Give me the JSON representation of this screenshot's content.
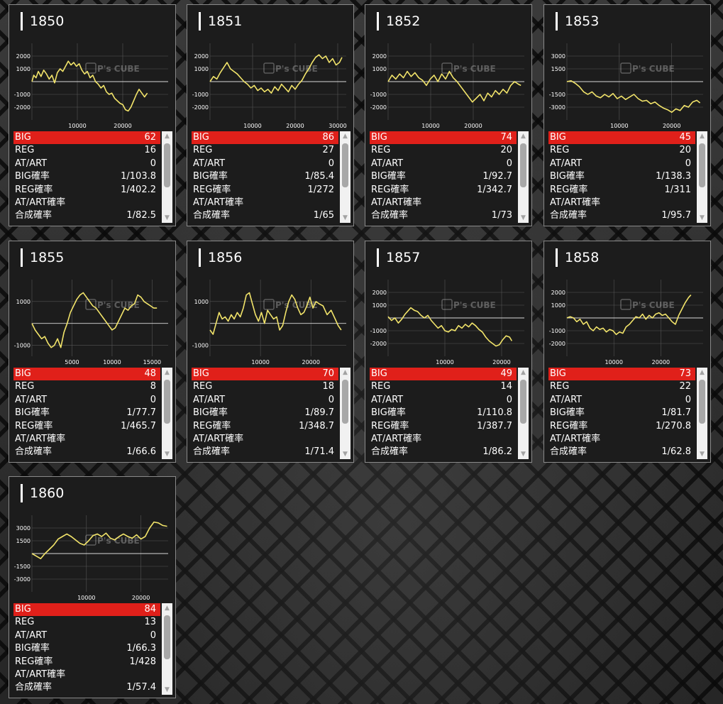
{
  "labels": {
    "big": "BIG",
    "reg": "REG",
    "atart": "AT/ART",
    "big_rate": "BIG確率",
    "reg_rate": "REG確率",
    "atart_rate": "AT/ART確率",
    "total_rate": "合成確率"
  },
  "watermark": "P's CUBE",
  "colors": {
    "line": "#f2e46a",
    "big_row": "#e0201a",
    "grid": "#555555",
    "axis": "#d9d9d9"
  },
  "machines": [
    {
      "id": "1850",
      "big": "62",
      "reg": "16",
      "atart": "0",
      "big_rate": "1/103.8",
      "reg_rate": "1/402.2",
      "atart_rate": "",
      "total_rate": "1/82.5",
      "chart_data": {
        "type": "line",
        "xlim": [
          0,
          30000
        ],
        "ylim": [
          -3000,
          3000
        ],
        "yticks": [
          2000,
          1000,
          -1000,
          -2000
        ],
        "xticks": [
          10000,
          20000
        ],
        "x": [
          0,
          400,
          900,
          1400,
          2000,
          2600,
          3200,
          3800,
          4400,
          5000,
          5600,
          6200,
          6800,
          7400,
          8000,
          8600,
          9200,
          9800,
          10400,
          11000,
          11600,
          12200,
          12800,
          13400,
          14000,
          14600,
          15200,
          15800,
          16400,
          17000,
          17600,
          18200,
          18800,
          19400,
          20000,
          20600,
          21200,
          21800,
          22400,
          23000,
          23600,
          24200,
          24800,
          25400
        ],
        "y": [
          0,
          500,
          300,
          800,
          400,
          900,
          600,
          200,
          500,
          -100,
          700,
          1000,
          800,
          1200,
          1600,
          1300,
          1500,
          1200,
          1400,
          900,
          600,
          800,
          300,
          500,
          0,
          -200,
          -500,
          -300,
          -800,
          -1000,
          -900,
          -1300,
          -1500,
          -1700,
          -1800,
          -2200,
          -2300,
          -2000,
          -1500,
          -1000,
          -600,
          -900,
          -1200,
          -900
        ]
      }
    },
    {
      "id": "1851",
      "big": "86",
      "reg": "27",
      "atart": "0",
      "big_rate": "1/85.4",
      "reg_rate": "1/272",
      "atart_rate": "",
      "total_rate": "1/65",
      "chart_data": {
        "type": "line",
        "xlim": [
          0,
          32000
        ],
        "ylim": [
          -3000,
          3000
        ],
        "yticks": [
          2000,
          1000,
          -1000,
          -2000
        ],
        "xticks": [
          10000,
          20000,
          30000
        ],
        "x": [
          0,
          800,
          1600,
          2400,
          3200,
          4000,
          4800,
          5600,
          6400,
          7200,
          8000,
          8800,
          9600,
          10400,
          11200,
          12000,
          12800,
          13600,
          14400,
          15200,
          16000,
          16800,
          17600,
          18400,
          19200,
          20000,
          20800,
          21600,
          22400,
          23200,
          24000,
          24800,
          25600,
          26400,
          27200,
          28000,
          28800,
          29600,
          30400,
          31000
        ],
        "y": [
          0,
          400,
          200,
          700,
          1100,
          1500,
          1000,
          800,
          600,
          300,
          0,
          -200,
          -500,
          -300,
          -700,
          -500,
          -800,
          -600,
          -900,
          -400,
          -700,
          -200,
          -500,
          -800,
          -300,
          -600,
          -200,
          100,
          600,
          1000,
          1500,
          1900,
          2100,
          1800,
          2000,
          1500,
          1800,
          1300,
          1500,
          1900
        ]
      }
    },
    {
      "id": "1852",
      "big": "74",
      "reg": "20",
      "atart": "0",
      "big_rate": "1/92.7",
      "reg_rate": "1/342.7",
      "atart_rate": "",
      "total_rate": "1/73",
      "chart_data": {
        "type": "line",
        "xlim": [
          0,
          32000
        ],
        "ylim": [
          -3000,
          3000
        ],
        "yticks": [
          2000,
          1000,
          -1000,
          -2000
        ],
        "xticks": [
          10000,
          20000
        ],
        "x": [
          0,
          900,
          1800,
          2700,
          3600,
          4500,
          5400,
          6300,
          7200,
          8100,
          9000,
          9900,
          10800,
          11700,
          12600,
          13500,
          14400,
          15300,
          16200,
          17100,
          18000,
          18900,
          19800,
          20700,
          21600,
          22500,
          23400,
          24300,
          25200,
          26100,
          27000,
          27900,
          28800,
          29700,
          30600,
          31200
        ],
        "y": [
          0,
          500,
          200,
          600,
          300,
          800,
          400,
          700,
          300,
          100,
          -300,
          200,
          500,
          0,
          600,
          200,
          800,
          300,
          0,
          -400,
          -800,
          -1200,
          -1600,
          -1300,
          -1000,
          -1500,
          -900,
          -1200,
          -700,
          -1000,
          -600,
          -900,
          -300,
          0,
          -200,
          -300
        ]
      }
    },
    {
      "id": "1853",
      "big": "45",
      "reg": "20",
      "atart": "0",
      "big_rate": "1/138.3",
      "reg_rate": "1/311",
      "atart_rate": "",
      "total_rate": "1/95.7",
      "chart_data": {
        "type": "line",
        "xlim": [
          0,
          26000
        ],
        "ylim": [
          -4500,
          4500
        ],
        "yticks": [
          3000,
          1500,
          -1500,
          -3000
        ],
        "xticks": [
          10000,
          20000
        ],
        "x": [
          0,
          800,
          1600,
          2400,
          3200,
          4000,
          4800,
          5600,
          6400,
          7200,
          8000,
          8800,
          9600,
          10400,
          11200,
          12000,
          12800,
          13600,
          14400,
          15200,
          16000,
          16800,
          17600,
          18400,
          19200,
          20000,
          20800,
          21600,
          22400,
          23200,
          24000,
          24800,
          25400
        ],
        "y": [
          0,
          100,
          -200,
          -600,
          -1200,
          -1500,
          -1200,
          -1700,
          -1900,
          -1500,
          -1800,
          -1400,
          -2000,
          -1700,
          -2100,
          -1800,
          -1500,
          -2000,
          -2300,
          -2200,
          -2600,
          -2400,
          -2800,
          -3100,
          -3300,
          -3600,
          -3200,
          -3400,
          -2800,
          -3000,
          -2400,
          -2200,
          -2500
        ]
      }
    },
    {
      "id": "1855",
      "big": "48",
      "reg": "8",
      "atart": "0",
      "big_rate": "1/77.7",
      "reg_rate": "1/465.7",
      "atart_rate": "",
      "total_rate": "1/66.6",
      "chart_data": {
        "type": "line",
        "xlim": [
          0,
          17000
        ],
        "ylim": [
          -1500,
          2000
        ],
        "yticks": [
          1000,
          -1000
        ],
        "xticks": [
          5000,
          10000,
          15000
        ],
        "x": [
          0,
          400,
          800,
          1200,
          1600,
          2000,
          2400,
          2800,
          3200,
          3600,
          4000,
          4400,
          4800,
          5200,
          5600,
          6000,
          6400,
          6800,
          7200,
          7600,
          8000,
          8400,
          8800,
          9200,
          9600,
          10000,
          10400,
          10800,
          11200,
          11600,
          12000,
          12400,
          12800,
          13200,
          13600,
          14000,
          14400,
          14800,
          15200,
          15600
        ],
        "y": [
          0,
          -300,
          -500,
          -700,
          -600,
          -900,
          -1100,
          -1000,
          -700,
          -1100,
          -400,
          0,
          500,
          800,
          1100,
          1300,
          1400,
          1200,
          1000,
          800,
          700,
          500,
          300,
          100,
          -100,
          -300,
          -200,
          100,
          400,
          700,
          600,
          800,
          900,
          1300,
          1200,
          1000,
          900,
          800,
          700,
          700
        ]
      }
    },
    {
      "id": "1856",
      "big": "70",
      "reg": "18",
      "atart": "0",
      "big_rate": "1/89.7",
      "reg_rate": "1/348.7",
      "atart_rate": "",
      "total_rate": "1/71.4",
      "chart_data": {
        "type": "line",
        "xlim": [
          0,
          27000
        ],
        "ylim": [
          -1500,
          2000
        ],
        "yticks": [
          1000,
          -1000
        ],
        "xticks": [
          10000,
          20000
        ],
        "x": [
          0,
          600,
          1200,
          1800,
          2400,
          3000,
          3600,
          4200,
          4800,
          5400,
          6000,
          6600,
          7200,
          7800,
          8400,
          9000,
          9600,
          10200,
          10800,
          11400,
          12000,
          12600,
          13200,
          13800,
          14400,
          15000,
          15600,
          16200,
          16800,
          17400,
          18000,
          18600,
          19200,
          19800,
          20400,
          21000,
          21600,
          22400,
          23200,
          24000,
          24800,
          25400,
          26000
        ],
        "y": [
          -300,
          -500,
          0,
          500,
          200,
          300,
          100,
          400,
          200,
          500,
          300,
          700,
          1300,
          1400,
          900,
          400,
          100,
          500,
          0,
          600,
          400,
          200,
          300,
          -300,
          -100,
          500,
          1000,
          1300,
          1100,
          700,
          400,
          500,
          800,
          1200,
          700,
          1000,
          900,
          800,
          400,
          600,
          200,
          -100,
          -300
        ]
      }
    },
    {
      "id": "1857",
      "big": "49",
      "reg": "14",
      "atart": "0",
      "big_rate": "1/110.8",
      "reg_rate": "1/387.7",
      "atart_rate": "",
      "total_rate": "1/86.2",
      "chart_data": {
        "type": "line",
        "xlim": [
          0,
          24000
        ],
        "ylim": [
          -3000,
          3000
        ],
        "yticks": [
          2000,
          1000,
          -1000,
          -2000
        ],
        "xticks": [
          10000,
          20000
        ],
        "x": [
          0,
          600,
          1200,
          1800,
          2400,
          3000,
          3600,
          4000,
          4600,
          5200,
          5800,
          6400,
          7000,
          7600,
          8200,
          8800,
          9400,
          10000,
          10600,
          11200,
          11800,
          12400,
          13000,
          13600,
          14200,
          14800,
          15400,
          16000,
          16600,
          17200,
          17800,
          18400,
          19000,
          19600,
          20200,
          20800,
          21400,
          21800
        ],
        "y": [
          100,
          -200,
          0,
          -400,
          -100,
          300,
          600,
          800,
          600,
          500,
          200,
          0,
          200,
          -200,
          -500,
          -800,
          -600,
          -1000,
          -1100,
          -900,
          -1000,
          -600,
          -800,
          -500,
          -700,
          -400,
          -600,
          -900,
          -1100,
          -1500,
          -1800,
          -2000,
          -2200,
          -2100,
          -1700,
          -1400,
          -1500,
          -1800
        ]
      }
    },
    {
      "id": "1858",
      "big": "73",
      "reg": "22",
      "atart": "0",
      "big_rate": "1/81.7",
      "reg_rate": "1/270.8",
      "atart_rate": "",
      "total_rate": "1/62.8",
      "chart_data": {
        "type": "line",
        "xlim": [
          0,
          29000
        ],
        "ylim": [
          -3000,
          3000
        ],
        "yticks": [
          2000,
          1000,
          -1000,
          -2000
        ],
        "xticks": [
          10000,
          20000
        ],
        "x": [
          0,
          700,
          1400,
          2100,
          2800,
          3500,
          4200,
          4900,
          5600,
          6300,
          7000,
          7700,
          8400,
          9100,
          9800,
          10500,
          11200,
          11900,
          12600,
          13300,
          14000,
          14700,
          15400,
          16100,
          16800,
          17500,
          18200,
          18900,
          19600,
          20300,
          21000,
          21700,
          22400,
          23100,
          23800,
          24500,
          25200,
          25900,
          26400
        ],
        "y": [
          0,
          100,
          0,
          -300,
          -100,
          -500,
          -300,
          -800,
          -1000,
          -700,
          -900,
          -800,
          -1100,
          -900,
          -1000,
          -1300,
          -1100,
          -1200,
          -700,
          -500,
          -200,
          100,
          0,
          300,
          -100,
          200,
          0,
          300,
          400,
          200,
          300,
          0,
          -300,
          -500,
          200,
          700,
          1200,
          1600,
          1800
        ]
      }
    },
    {
      "id": "1860",
      "big": "84",
      "reg": "13",
      "atart": "0",
      "big_rate": "1/66.3",
      "reg_rate": "1/428",
      "atart_rate": "",
      "total_rate": "1/57.4",
      "chart_data": {
        "type": "line",
        "xlim": [
          0,
          25000
        ],
        "ylim": [
          -4500,
          4500
        ],
        "yticks": [
          3000,
          1500,
          -1500,
          -3000
        ],
        "xticks": [
          10000,
          20000
        ],
        "x": [
          0,
          800,
          1600,
          2400,
          3200,
          4000,
          4800,
          5600,
          6400,
          7200,
          8000,
          8800,
          9600,
          10400,
          11200,
          12000,
          12800,
          13600,
          14400,
          15200,
          16000,
          16800,
          17600,
          18400,
          19200,
          20000,
          20800,
          21600,
          22400,
          23200,
          24000,
          24800
        ],
        "y": [
          0,
          -300,
          -600,
          0,
          500,
          1000,
          1700,
          2000,
          2300,
          2000,
          1600,
          1200,
          1000,
          1500,
          2100,
          2300,
          2000,
          2400,
          1800,
          1600,
          2000,
          2300,
          2000,
          1800,
          2200,
          1700,
          2000,
          3000,
          3700,
          3600,
          3300,
          3200
        ]
      }
    }
  ]
}
